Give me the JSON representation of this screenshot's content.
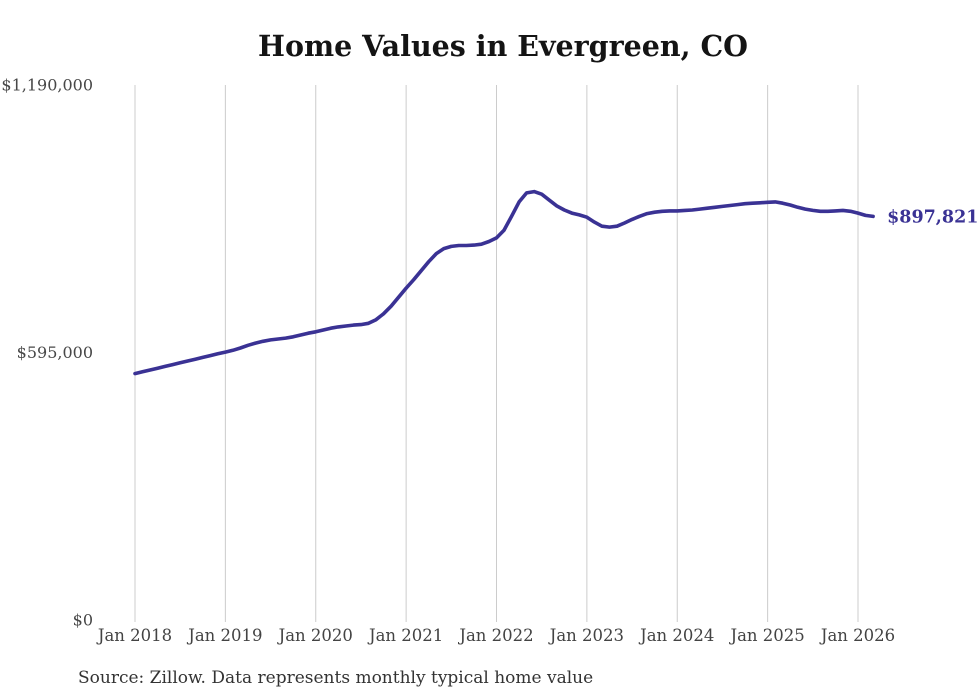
{
  "page": {
    "title": "Home Values in Evergreen, CO",
    "source": "Source: Zillow. Data represents monthly typical home value"
  },
  "chart_data": {
    "type": "line",
    "title": "Home Values in Evergreen, CO",
    "series_name": "Monthly typical home value",
    "source": "Source: Zillow. Data represents monthly typical home value",
    "frequency": "monthly",
    "x_start": "2018-01",
    "x_end": "2026-03",
    "x_tick_labels": [
      "Jan 2018",
      "Jan 2019",
      "Jan 2020",
      "Jan 2021",
      "Jan 2022",
      "Jan 2023",
      "Jan 2024",
      "Jan 2025",
      "Jan 2026"
    ],
    "y_ticks": [
      {
        "value": 0,
        "label": "$0"
      },
      {
        "value": 595000,
        "label": "$595,000"
      },
      {
        "value": 1190000,
        "label": "$1,190,000"
      }
    ],
    "ylim": [
      0,
      1190000
    ],
    "grid": "vertical-only",
    "legend": "none",
    "line_color": "#3a3294",
    "end_label": "$897,821",
    "latest_value": 897821,
    "values": [
      548000,
      552000,
      556000,
      560000,
      564000,
      568000,
      572000,
      576000,
      580000,
      584000,
      588000,
      592000,
      596000,
      600000,
      605000,
      611000,
      616000,
      620000,
      623000,
      625000,
      627000,
      630000,
      634000,
      638000,
      641000,
      645000,
      649000,
      652000,
      654000,
      656000,
      657000,
      660000,
      668000,
      681000,
      698000,
      718000,
      738000,
      757000,
      777000,
      797000,
      815000,
      826000,
      831000,
      833000,
      833000,
      834000,
      836000,
      842000,
      850000,
      867000,
      898000,
      930000,
      950000,
      953000,
      947000,
      934000,
      921000,
      912000,
      905000,
      901000,
      896000,
      885000,
      876000,
      874000,
      876000,
      883000,
      891000,
      898000,
      904000,
      907000,
      909000,
      910000,
      910000,
      911000,
      912000,
      914000,
      916000,
      918000,
      920000,
      922000,
      924000,
      926000,
      927000,
      928000,
      929000,
      930000,
      927000,
      923000,
      918000,
      914000,
      911000,
      909000,
      909000,
      910000,
      911000,
      909000,
      905000,
      900000,
      897821
    ]
  }
}
